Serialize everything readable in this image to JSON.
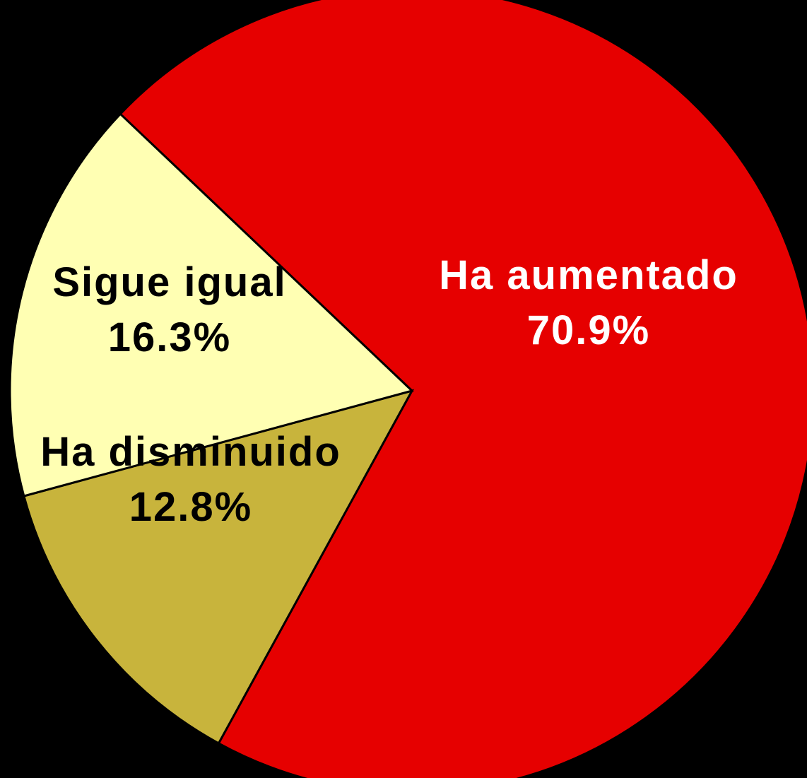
{
  "chart_data": {
    "type": "pie",
    "categories": [
      "Ha aumentado",
      "Ha disminuido",
      "Sigue igual"
    ],
    "values": [
      70.9,
      12.8,
      16.3
    ],
    "value_labels": [
      "70.9%",
      "12.8%",
      "16.3%"
    ],
    "colors": [
      "#e60000",
      "#c8b43c",
      "#ffffb3"
    ],
    "label_colors": [
      "#ffffff",
      "#000000",
      "#000000"
    ]
  }
}
